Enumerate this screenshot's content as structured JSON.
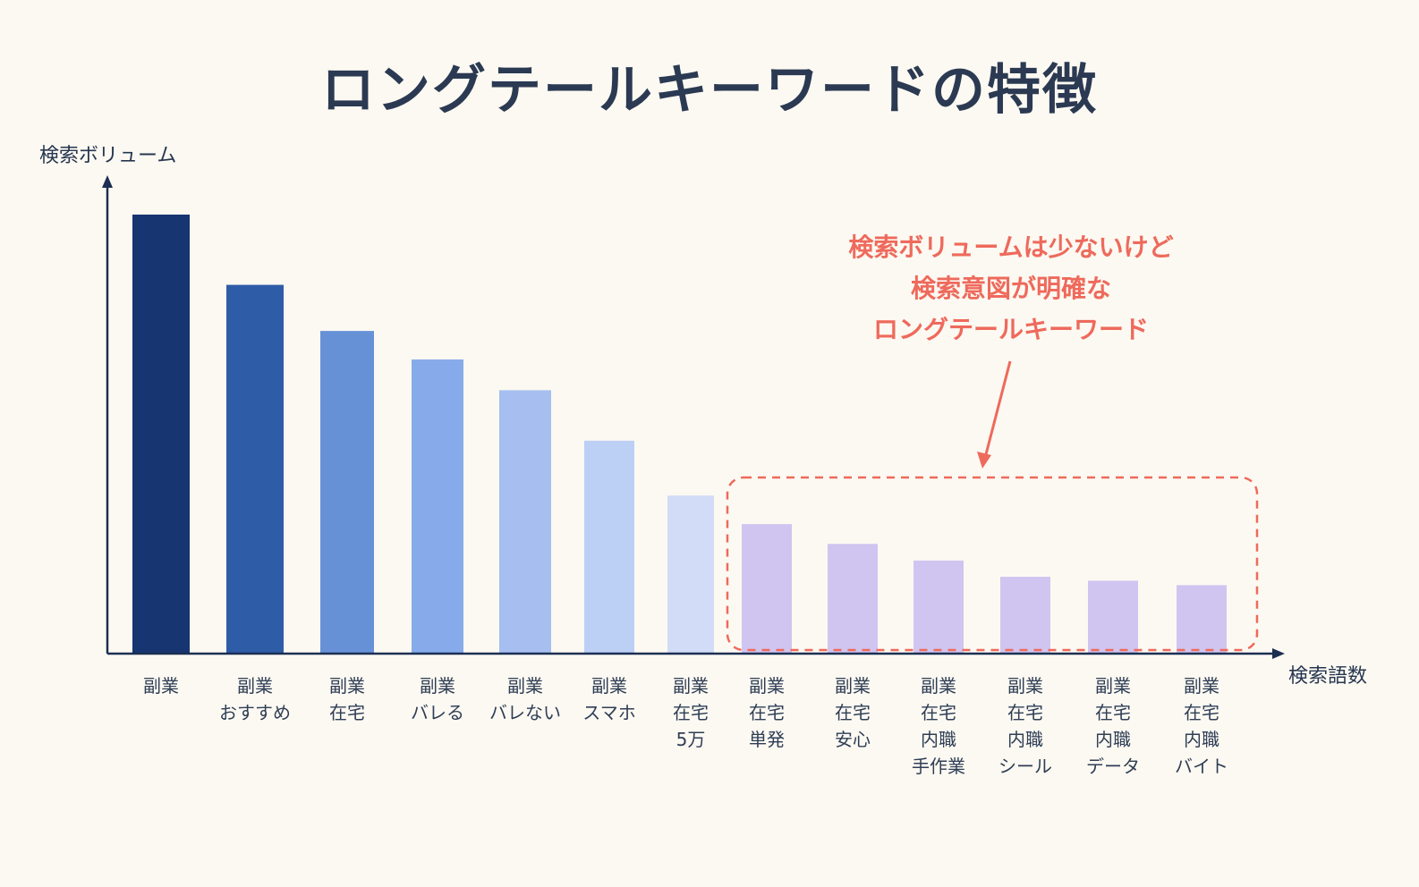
{
  "chart_data": {
    "type": "bar",
    "title": "ロングテールキーワードの特徴",
    "ylabel": "検索ボリューム",
    "xlabel": "検索語数",
    "ylim": [
      0,
      100
    ],
    "categories": [
      [
        "副業"
      ],
      [
        "副業",
        "おすすめ"
      ],
      [
        "副業",
        "在宅"
      ],
      [
        "副業",
        "バレる"
      ],
      [
        "副業",
        "バレない"
      ],
      [
        "副業",
        "スマホ"
      ],
      [
        "副業",
        "在宅",
        "5万"
      ],
      [
        "副業",
        "在宅",
        "単発"
      ],
      [
        "副業",
        "在宅",
        "安心"
      ],
      [
        "副業",
        "在宅",
        "内職",
        "手作業"
      ],
      [
        "副業",
        "在宅",
        "内職",
        "シール"
      ],
      [
        "副業",
        "在宅",
        "内職",
        "データ"
      ],
      [
        "副業",
        "在宅",
        "内職",
        "バイト"
      ]
    ],
    "values": [
      100,
      84,
      73.5,
      67,
      60,
      48.5,
      36,
      29.5,
      25,
      21.2,
      17.5,
      16.6,
      15.6
    ],
    "colors": [
      "#173570",
      "#2f5ca7",
      "#6791d7",
      "#87abea",
      "#a6bff0",
      "#bccff5",
      "#d2dcf7",
      "#d0c5f0",
      "#d0c5f0",
      "#d0c5f0",
      "#d0c5f0",
      "#d0c5f0",
      "#d0c5f0"
    ],
    "highlight": {
      "first_index": 7,
      "last_index": 12,
      "color": "#ee6a5c",
      "text": [
        "検索ボリュームは少ないけど",
        "検索意図が明確な",
        "ロングテールキーワード"
      ]
    },
    "grid": false,
    "legend": "none"
  }
}
